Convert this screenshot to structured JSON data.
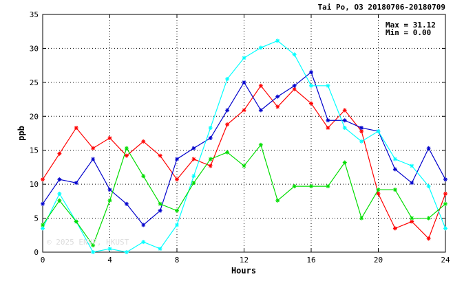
{
  "chart_data": {
    "type": "line",
    "title": "Tai Po, O3 20180706-20180709",
    "xlabel": "Hours",
    "ylabel": "ppb",
    "xlim": [
      0,
      24
    ],
    "ylim": [
      0,
      35
    ],
    "x_ticks": [
      "0",
      "4",
      "8",
      "12",
      "16",
      "20",
      "24"
    ],
    "y_ticks": [
      "0",
      "5",
      "10",
      "15",
      "20",
      "25",
      "30",
      "35"
    ],
    "grid": true,
    "stats": {
      "max_label": "Max = 31.12",
      "min_label": "Min =  0.00"
    },
    "watermark": "© 2025 ENVF, HKUST",
    "x": [
      0,
      1,
      2,
      3,
      4,
      5,
      6,
      7,
      8,
      9,
      10,
      11,
      12,
      13,
      14,
      15,
      16,
      17,
      18,
      19,
      20,
      21,
      22,
      23,
      24
    ],
    "series": [
      {
        "color": "#ff0000",
        "values": [
          10.7,
          14.5,
          18.3,
          15.3,
          16.8,
          14.2,
          16.3,
          14.2,
          10.7,
          13.7,
          12.7,
          18.8,
          20.9,
          24.5,
          21.4,
          24.0,
          21.9,
          18.3,
          20.9,
          17.8,
          8.6,
          3.5,
          4.5,
          2.0,
          8.6
        ]
      },
      {
        "color": "#0000cc",
        "values": [
          7.1,
          10.7,
          10.2,
          13.7,
          9.2,
          7.1,
          4.0,
          6.1,
          13.7,
          15.3,
          16.8,
          20.9,
          25.0,
          20.9,
          22.9,
          24.5,
          26.5,
          19.4,
          19.4,
          18.3,
          17.8,
          12.2,
          10.2,
          15.3,
          10.7
        ]
      },
      {
        "color": "#00ffff",
        "values": [
          3.5,
          8.6,
          4.5,
          0.0,
          0.5,
          0.0,
          1.5,
          0.5,
          4.0,
          11.2,
          18.3,
          25.5,
          28.6,
          30.1,
          31.12,
          29.1,
          24.5,
          24.5,
          18.3,
          16.3,
          17.8,
          13.7,
          12.7,
          9.7,
          3.5
        ]
      },
      {
        "color": "#00dd00",
        "values": [
          4.0,
          7.6,
          4.5,
          1.0,
          7.6,
          15.3,
          11.2,
          7.1,
          6.1,
          10.2,
          13.7,
          14.7,
          12.7,
          15.8,
          7.6,
          9.7,
          9.7,
          9.7,
          13.2,
          5.0,
          9.2,
          9.2,
          5.0,
          5.0,
          7.1
        ]
      }
    ]
  }
}
